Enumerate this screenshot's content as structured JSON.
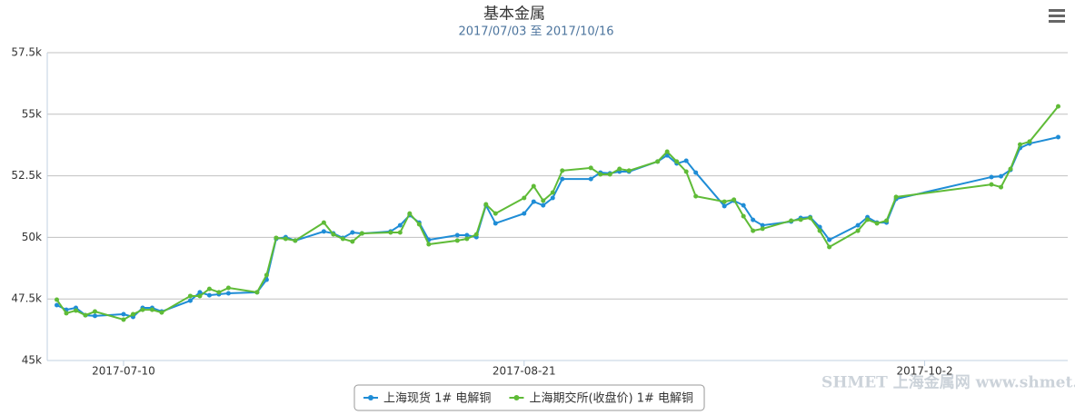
{
  "chart_data": {
    "type": "line",
    "title": "基本金属",
    "subtitle": "2017/07/03 至 2017/10/16",
    "watermark": "SHMET 上海金属网 www.shmet.com",
    "x": [
      "2017-07-03",
      "2017-07-04",
      "2017-07-05",
      "2017-07-06",
      "2017-07-07",
      "2017-07-10",
      "2017-07-11",
      "2017-07-12",
      "2017-07-13",
      "2017-07-14",
      "2017-07-17",
      "2017-07-18",
      "2017-07-19",
      "2017-07-20",
      "2017-07-21",
      "2017-07-24",
      "2017-07-25",
      "2017-07-26",
      "2017-07-27",
      "2017-07-28",
      "2017-07-31",
      "2017-08-01",
      "2017-08-02",
      "2017-08-03",
      "2017-08-04",
      "2017-08-07",
      "2017-08-08",
      "2017-08-09",
      "2017-08-10",
      "2017-08-11",
      "2017-08-14",
      "2017-08-15",
      "2017-08-16",
      "2017-08-17",
      "2017-08-18",
      "2017-08-21",
      "2017-08-22",
      "2017-08-23",
      "2017-08-24",
      "2017-08-25",
      "2017-08-28",
      "2017-08-29",
      "2017-08-30",
      "2017-08-31",
      "2017-09-01",
      "2017-09-04",
      "2017-09-05",
      "2017-09-06",
      "2017-09-07",
      "2017-09-08",
      "2017-09-11",
      "2017-09-12",
      "2017-09-13",
      "2017-09-14",
      "2017-09-15",
      "2017-09-18",
      "2017-09-19",
      "2017-09-20",
      "2017-09-21",
      "2017-09-22",
      "2017-09-25",
      "2017-09-26",
      "2017-09-27",
      "2017-09-28",
      "2017-09-29",
      "2017-10-09",
      "2017-10-10",
      "2017-10-11",
      "2017-10-12",
      "2017-10-13",
      "2017-10-16"
    ],
    "series": [
      {
        "name": "上海现货 1# 电解铜",
        "color": "#1f8dd6",
        "values": [
          47250,
          47060,
          47140,
          46840,
          46810,
          46880,
          46770,
          47140,
          47140,
          46990,
          47430,
          47770,
          47650,
          47690,
          47730,
          47770,
          48280,
          49940,
          50010,
          49870,
          50240,
          50160,
          49980,
          50200,
          50160,
          50240,
          50490,
          50900,
          50600,
          49900,
          50090,
          50090,
          50010,
          51300,
          50570,
          50970,
          51450,
          51300,
          51600,
          52370,
          52370,
          52630,
          52600,
          52670,
          52670,
          53080,
          53330,
          53000,
          53110,
          52630,
          51270,
          51490,
          51300,
          50710,
          50490,
          50640,
          50790,
          50820,
          50420,
          49900,
          50490,
          50820,
          50600,
          50600,
          51560,
          52450,
          52480,
          52740,
          53630,
          53810,
          54070
        ]
      },
      {
        "name": "上海期交所(收盘价) 1# 电解铜",
        "color": "#5fbb37",
        "values": [
          47470,
          46920,
          47030,
          46840,
          46990,
          46660,
          46880,
          47060,
          47060,
          46950,
          47620,
          47620,
          47910,
          47770,
          47950,
          47770,
          48470,
          49980,
          49940,
          49870,
          50600,
          50120,
          49940,
          49830,
          50160,
          50200,
          50200,
          50970,
          50530,
          49720,
          49870,
          49940,
          50120,
          51340,
          50970,
          51600,
          52080,
          51490,
          51820,
          52710,
          52820,
          52560,
          52560,
          52780,
          52710,
          53080,
          53480,
          53080,
          52670,
          51670,
          51450,
          51530,
          50860,
          50270,
          50350,
          50680,
          50720,
          50790,
          50270,
          49610,
          50270,
          50720,
          50570,
          50680,
          51640,
          52150,
          52040,
          52780,
          53770,
          53890,
          55320
        ]
      }
    ],
    "xlim": [
      "2017-07-02",
      "2017-10-17"
    ],
    "xticks": [
      "2017-07-10",
      "2017-08-21",
      {
        "value": "2017-10-02",
        "label": "2017-10-2"
      }
    ],
    "ylim": [
      45000,
      57500
    ],
    "yticks": [
      {
        "value": 45000,
        "label": "45k"
      },
      {
        "value": 47500,
        "label": "47.5k"
      },
      {
        "value": 50000,
        "label": "50k"
      },
      {
        "value": 52500,
        "label": "52.5k"
      },
      {
        "value": 55000,
        "label": "55k"
      },
      {
        "value": 57500,
        "label": "57.5k"
      }
    ],
    "grid": true
  }
}
